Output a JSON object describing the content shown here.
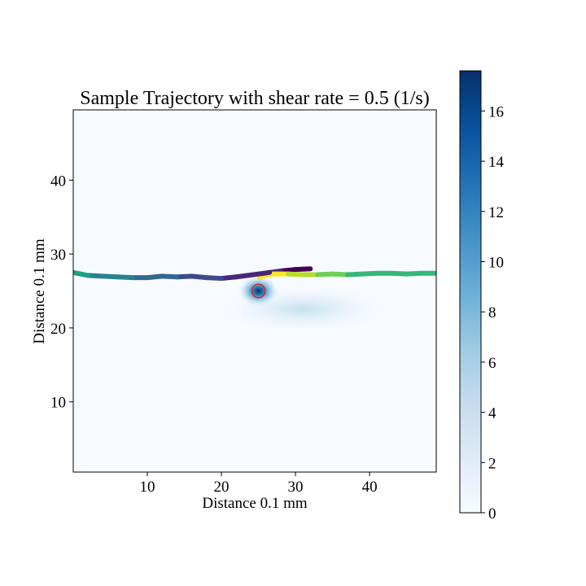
{
  "chart_data": {
    "type": "heatmap",
    "title": "Sample Trajectory with shear rate = 0.5 (1/s)",
    "xlabel": "Distance 0.1 mm",
    "ylabel": "Distance 0.1 mm",
    "xlim": [
      0,
      49
    ],
    "ylim": [
      0.5,
      49.5
    ],
    "xticks": [
      10,
      20,
      30,
      40
    ],
    "yticks": [
      10,
      20,
      30,
      40
    ],
    "colorbar": {
      "colormap": "Blues",
      "range": [
        0,
        17.6
      ],
      "ticks": [
        0,
        2,
        4,
        6,
        8,
        10,
        12,
        14,
        16
      ]
    },
    "concentration_source": {
      "x": 25,
      "y": 25,
      "peak": 17.6
    },
    "marker": {
      "x": 25,
      "y": 25,
      "radius": 0.9,
      "color": "#d62728"
    },
    "trajectory": {
      "colormap": "viridis",
      "points": [
        [
          32,
          28.0
        ],
        [
          30,
          27.9
        ],
        [
          28,
          27.7
        ],
        [
          26.5,
          27.5
        ],
        [
          25.5,
          27.3
        ],
        [
          25.2,
          26.8
        ],
        [
          25.5,
          27.0
        ],
        [
          27,
          27.3
        ],
        [
          29,
          27.3
        ],
        [
          31,
          27.2
        ],
        [
          33,
          27.2
        ],
        [
          35,
          27.3
        ],
        [
          37,
          27.2
        ],
        [
          39,
          27.3
        ],
        [
          41,
          27.4
        ],
        [
          43,
          27.4
        ],
        [
          45,
          27.3
        ],
        [
          47,
          27.4
        ],
        [
          49,
          27.4
        ],
        [
          22,
          26.9
        ],
        [
          20,
          26.7
        ],
        [
          18,
          26.8
        ],
        [
          16,
          27.0
        ],
        [
          14,
          26.9
        ],
        [
          12,
          27.0
        ],
        [
          10,
          26.8
        ],
        [
          8,
          26.8
        ],
        [
          6,
          26.9
        ],
        [
          4,
          27.0
        ],
        [
          2,
          27.1
        ],
        [
          0,
          27.5
        ]
      ]
    }
  }
}
